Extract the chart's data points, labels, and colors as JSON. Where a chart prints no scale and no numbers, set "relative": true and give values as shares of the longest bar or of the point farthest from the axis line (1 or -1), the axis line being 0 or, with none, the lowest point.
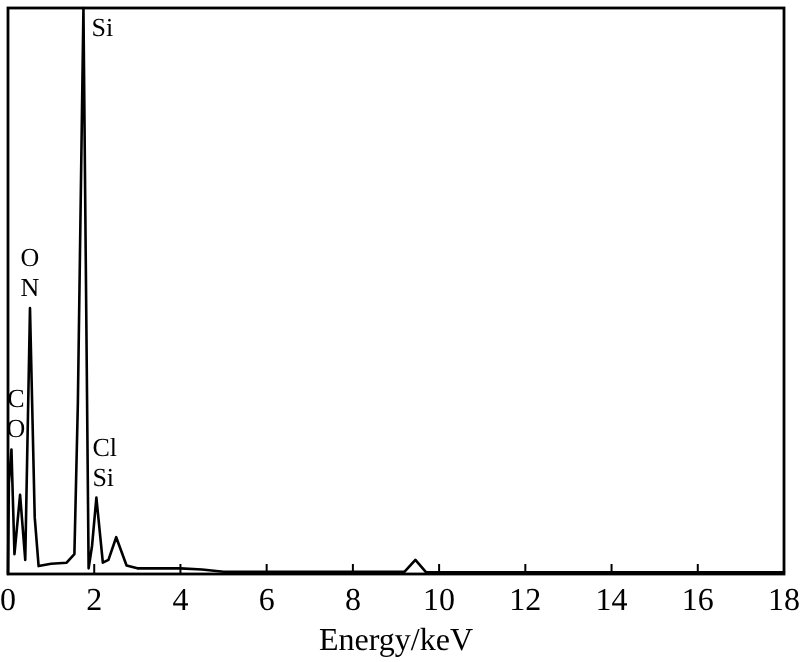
{
  "chart_data": {
    "type": "line",
    "xlabel": "Energy/keV",
    "relative": true,
    "color": "#000000",
    "x": [
      0,
      0.02,
      0.08,
      0.15,
      0.28,
      0.4,
      0.51,
      0.62,
      0.71,
      1.0,
      1.36,
      1.54,
      1.62,
      1.75,
      1.87,
      1.95,
      2.05,
      2.2,
      2.33,
      2.51,
      2.75,
      3.0,
      4.0,
      4.5,
      5.0,
      9.2,
      9.45,
      9.7,
      12,
      18
    ],
    "values": [
      0,
      0.16,
      0.22,
      0.035,
      0.14,
      0.025,
      0.47,
      0.1,
      0.014,
      0.018,
      0.02,
      0.035,
      0.3,
      1,
      0.01,
      0.05,
      0.135,
      0.02,
      0.025,
      0.065,
      0.015,
      0.01,
      0.01,
      0.008,
      0.004,
      0.004,
      0.025,
      0.003,
      0.003,
      0.003
    ],
    "xlim": [
      0,
      18
    ],
    "xticks": [
      0,
      2,
      4,
      6,
      8,
      10,
      12,
      14,
      16,
      18
    ],
    "annotations": [
      {
        "text": "Si",
        "x": 1.75,
        "y": 1
      },
      {
        "text": "O",
        "x": 0.51,
        "y": 0.47
      },
      {
        "text": "N",
        "x": 0.51,
        "y": 0.47
      },
      {
        "text": "C",
        "x": 0.08,
        "y": 0.22
      },
      {
        "text": "O",
        "x": 0.08,
        "y": 0.22
      },
      {
        "text": "Cl",
        "x": 2.05,
        "y": 0.135
      },
      {
        "text": "Si",
        "x": 2.05,
        "y": 0.135
      }
    ]
  }
}
